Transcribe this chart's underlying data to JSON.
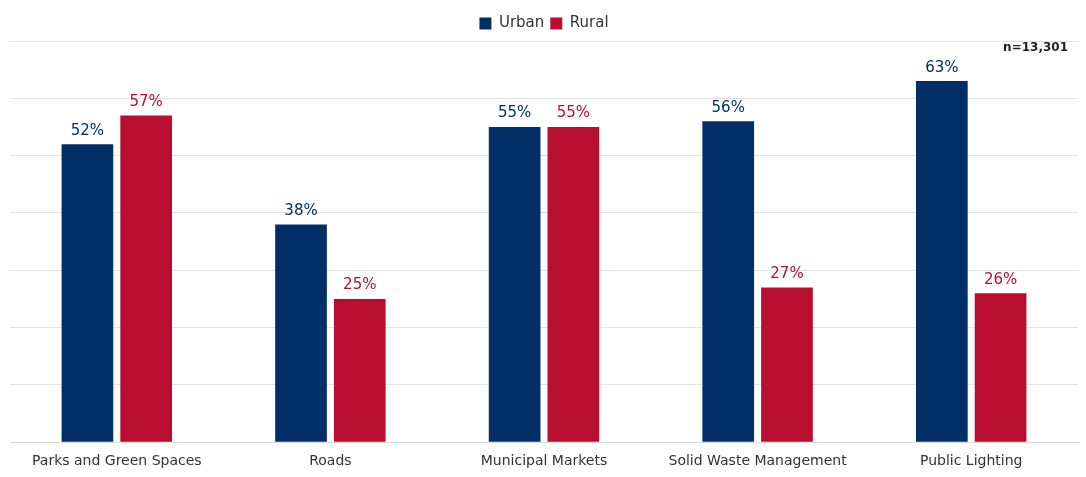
{
  "chart_data": {
    "type": "bar",
    "categories": [
      "Parks and Green Spaces",
      "Roads",
      "Municipal Markets",
      "Solid Waste Management",
      "Public Lighting"
    ],
    "series": [
      {
        "name": "Urban",
        "color": "#002f67",
        "values": [
          52,
          38,
          55,
          56,
          63
        ],
        "value_labels": [
          "52%",
          "38%",
          "55%",
          "56%",
          "63%"
        ]
      },
      {
        "name": "Rural",
        "color": "#b90e30",
        "values": [
          57,
          25,
          55,
          27,
          26
        ],
        "value_labels": [
          "57%",
          "25%",
          "55%",
          "27%",
          "26%"
        ]
      }
    ],
    "tick_labels": "x",
    "grid": "y",
    "legend": "top",
    "annotations": [
      "n=13,301"
    ]
  }
}
